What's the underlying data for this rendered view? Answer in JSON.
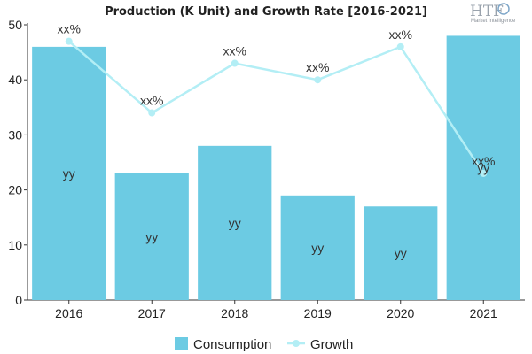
{
  "logo": {
    "brand": "HTF",
    "tagline": "Market Intelligence"
  },
  "chart_data": {
    "type": "bar",
    "title": "Production (K Unit) and Growth Rate [2016-2021]",
    "categories": [
      "2016",
      "2017",
      "2018",
      "2019",
      "2020",
      "2021"
    ],
    "ylim": [
      0,
      50
    ],
    "yticks": [
      "0",
      "10",
      "20",
      "30",
      "40",
      "50"
    ],
    "grid": false,
    "legend_position": "bottom",
    "series": [
      {
        "name": "Consumption",
        "type": "bar",
        "color": "#6ccbe3",
        "values": [
          46,
          23,
          28,
          19,
          17,
          48
        ],
        "labels": [
          "yy",
          "yy",
          "yy",
          "yy",
          "yy",
          "yy"
        ]
      },
      {
        "name": "Growth",
        "type": "line",
        "color": "#b3eef5",
        "values": [
          47,
          34,
          43,
          40,
          46,
          23
        ],
        "labels": [
          "xx%",
          "xx%",
          "xx%",
          "xx%",
          "xx%",
          "xx%"
        ]
      }
    ]
  }
}
